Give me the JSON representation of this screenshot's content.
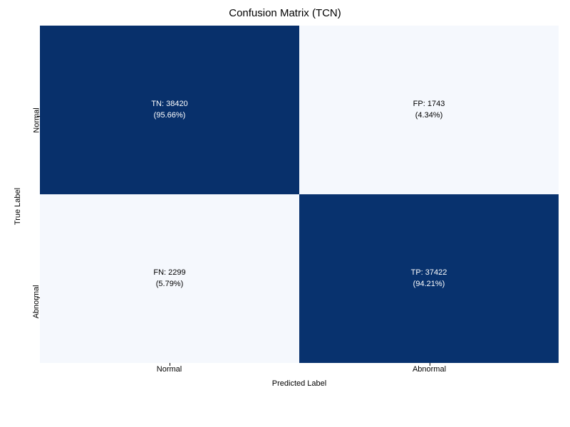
{
  "confusion_matrix": {
    "type": "heatmap",
    "title": "Confusion Matrix (TCN)",
    "title_fontsize": 15,
    "xlabel": "Predicted Label",
    "ylabel": "True Label",
    "label_fontsize": 11,
    "tick_fontsize": 11,
    "cell_fontsize": 11,
    "y_categories": [
      "Normal",
      "Abnormal"
    ],
    "x_categories": [
      "Normal",
      "Abnormal"
    ],
    "cells": [
      {
        "row": 0,
        "col": 0,
        "label_line1": "TN: 38420",
        "label_line2": "(95.66%)",
        "value": 38420,
        "bg_color": "#08306b",
        "text_color": "#ffffff"
      },
      {
        "row": 0,
        "col": 1,
        "label_line1": "FP: 1743",
        "label_line2": "(4.34%)",
        "value": 1743,
        "bg_color": "#f5f8fd",
        "text_color": "#000000"
      },
      {
        "row": 1,
        "col": 0,
        "label_line1": "FN: 2299",
        "label_line2": "(5.79%)",
        "value": 2299,
        "bg_color": "#f5f8fd",
        "text_color": "#000000"
      },
      {
        "row": 1,
        "col": 1,
        "label_line1": "TP: 37422",
        "label_line2": "(94.21%)",
        "value": 37422,
        "bg_color": "#08326e",
        "text_color": "#ffffff"
      }
    ],
    "background_color": "#ffffff"
  }
}
